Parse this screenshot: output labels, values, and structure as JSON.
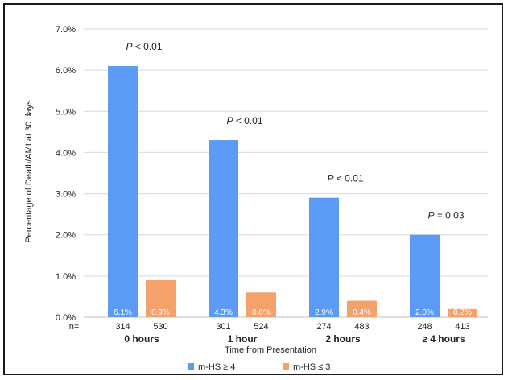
{
  "chart_data": {
    "type": "bar",
    "categories": [
      "0 hours",
      "1 hour",
      "2 hours",
      "≥ 4 hours"
    ],
    "series": [
      {
        "name": "m-HS ≥ 4",
        "color": "#5B9BF5",
        "values": [
          6.1,
          4.3,
          2.9,
          2.0
        ],
        "labels": [
          "6.1%",
          "4.3%",
          "2.9%",
          "2.0%"
        ],
        "n": [
          "314",
          "301",
          "274",
          "248"
        ]
      },
      {
        "name": "m-HS ≤ 3",
        "color": "#F4A16C",
        "values": [
          0.9,
          0.6,
          0.4,
          0.2
        ],
        "labels": [
          "0.9%",
          "0.6%",
          "0.4%",
          "0.2%"
        ],
        "n": [
          "530",
          "524",
          "483",
          "413"
        ]
      }
    ],
    "p_values": [
      {
        "italic": "P",
        "rest": " < 0.01"
      },
      {
        "italic": "P",
        "rest": " < 0.01"
      },
      {
        "italic": "P",
        "rest": " < 0.01"
      },
      {
        "italic": "P",
        "rest": " = 0.03"
      }
    ],
    "n_prefix": "n=",
    "ylabel": "Percentage of Death/AMI at 30 days",
    "xlabel": "Time from Presentation",
    "ylim": [
      0,
      7
    ],
    "yticks": [
      0,
      1,
      2,
      3,
      4,
      5,
      6,
      7
    ],
    "ytick_labels": [
      "0.0%",
      "1.0%",
      "2.0%",
      "3.0%",
      "4.0%",
      "5.0%",
      "6.0%",
      "7.0%"
    ],
    "grid": true,
    "legend_position": "bottom"
  }
}
